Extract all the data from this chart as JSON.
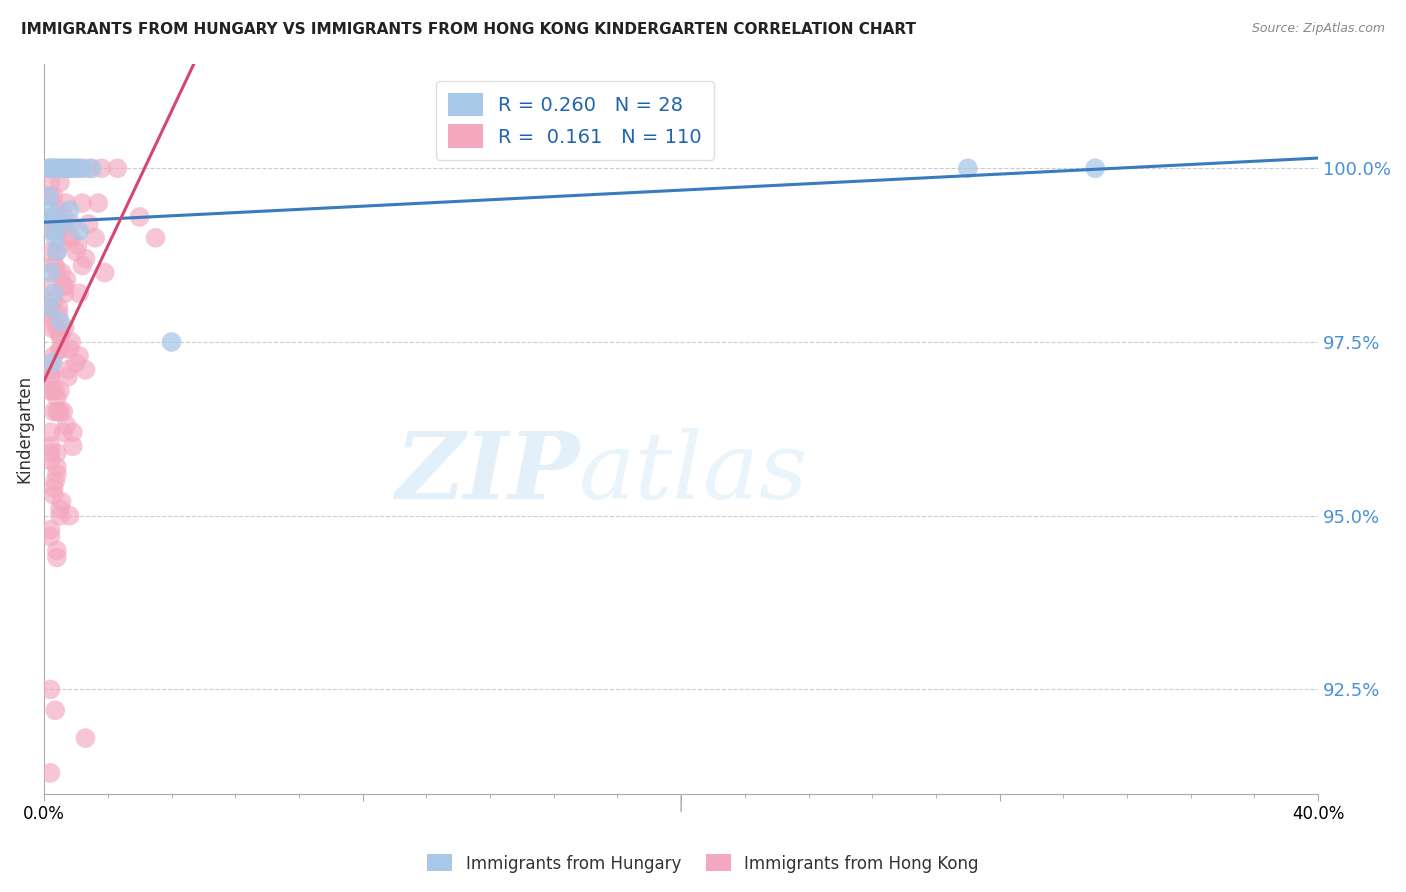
{
  "title": "IMMIGRANTS FROM HUNGARY VS IMMIGRANTS FROM HONG KONG KINDERGARTEN CORRELATION CHART",
  "source": "Source: ZipAtlas.com",
  "ylabel": "Kindergarten",
  "yticks": [
    92.5,
    95.0,
    97.5,
    100.0
  ],
  "ytick_labels": [
    "92.5%",
    "95.0%",
    "97.5%",
    "100.0%"
  ],
  "xlim": [
    0.0,
    40.0
  ],
  "ylim": [
    91.0,
    101.5
  ],
  "legend_hungary_R": "0.260",
  "legend_hungary_N": "28",
  "legend_hongkong_R": "0.161",
  "legend_hongkong_N": "110",
  "hungary_color": "#a8c8e8",
  "hongkong_color": "#f4a8c0",
  "hungary_line_color": "#3a7abf",
  "hongkong_line_color": "#d44870",
  "watermark_zip": "ZIP",
  "watermark_atlas": "atlas",
  "background_color": "#ffffff",
  "hungary_points": [
    [
      0.15,
      100.0
    ],
    [
      0.25,
      100.0
    ],
    [
      0.35,
      100.0
    ],
    [
      0.45,
      100.0
    ],
    [
      0.55,
      100.0
    ],
    [
      0.65,
      100.0
    ],
    [
      0.75,
      100.0
    ],
    [
      0.85,
      100.0
    ],
    [
      1.0,
      100.0
    ],
    [
      1.2,
      100.0
    ],
    [
      1.5,
      100.0
    ],
    [
      0.2,
      99.4
    ],
    [
      0.3,
      99.1
    ],
    [
      0.4,
      98.8
    ],
    [
      0.15,
      99.6
    ],
    [
      0.25,
      99.3
    ],
    [
      0.35,
      99.0
    ],
    [
      0.6,
      99.2
    ],
    [
      0.8,
      99.4
    ],
    [
      1.1,
      99.1
    ],
    [
      0.2,
      98.5
    ],
    [
      0.3,
      98.2
    ],
    [
      0.5,
      97.8
    ],
    [
      4.0,
      97.5
    ],
    [
      29.0,
      100.0
    ],
    [
      33.0,
      100.0
    ],
    [
      0.15,
      98.0
    ],
    [
      0.25,
      97.2
    ]
  ],
  "hongkong_points": [
    [
      0.15,
      100.0
    ],
    [
      0.25,
      100.0
    ],
    [
      0.35,
      100.0
    ],
    [
      0.5,
      100.0
    ],
    [
      0.7,
      100.0
    ],
    [
      0.9,
      100.0
    ],
    [
      1.1,
      100.0
    ],
    [
      1.4,
      100.0
    ],
    [
      1.8,
      100.0
    ],
    [
      2.3,
      100.0
    ],
    [
      0.2,
      99.8
    ],
    [
      0.3,
      99.6
    ],
    [
      0.45,
      99.4
    ],
    [
      0.6,
      99.2
    ],
    [
      0.8,
      99.0
    ],
    [
      1.0,
      98.8
    ],
    [
      1.2,
      98.6
    ],
    [
      0.25,
      99.1
    ],
    [
      0.4,
      98.8
    ],
    [
      0.55,
      98.5
    ],
    [
      0.15,
      98.3
    ],
    [
      0.3,
      98.1
    ],
    [
      0.45,
      97.9
    ],
    [
      0.65,
      97.7
    ],
    [
      0.85,
      97.5
    ],
    [
      1.1,
      97.3
    ],
    [
      1.3,
      97.1
    ],
    [
      0.2,
      97.0
    ],
    [
      0.35,
      96.8
    ],
    [
      0.5,
      96.5
    ],
    [
      0.7,
      96.3
    ],
    [
      0.9,
      96.0
    ],
    [
      0.2,
      95.8
    ],
    [
      0.35,
      95.5
    ],
    [
      0.55,
      95.2
    ],
    [
      0.8,
      95.0
    ],
    [
      1.2,
      99.5
    ],
    [
      1.4,
      99.2
    ],
    [
      1.6,
      99.0
    ],
    [
      1.9,
      98.5
    ],
    [
      0.3,
      99.3
    ],
    [
      0.5,
      99.1
    ],
    [
      0.2,
      98.8
    ],
    [
      0.7,
      98.4
    ],
    [
      1.1,
      98.2
    ],
    [
      0.2,
      98.0
    ],
    [
      0.3,
      97.8
    ],
    [
      0.5,
      97.6
    ],
    [
      0.8,
      97.4
    ],
    [
      1.0,
      97.2
    ],
    [
      0.2,
      97.0
    ],
    [
      0.4,
      96.7
    ],
    [
      0.6,
      96.5
    ],
    [
      0.9,
      96.2
    ],
    [
      0.2,
      96.0
    ],
    [
      0.4,
      95.7
    ],
    [
      0.3,
      95.4
    ],
    [
      0.5,
      95.1
    ],
    [
      0.2,
      94.8
    ],
    [
      0.4,
      94.5
    ],
    [
      0.2,
      99.6
    ],
    [
      0.6,
      99.3
    ],
    [
      0.85,
      99.0
    ],
    [
      1.3,
      98.7
    ],
    [
      0.4,
      98.5
    ],
    [
      0.65,
      98.2
    ],
    [
      0.2,
      97.9
    ],
    [
      0.5,
      97.6
    ],
    [
      0.3,
      97.3
    ],
    [
      0.75,
      97.0
    ],
    [
      0.2,
      96.8
    ],
    [
      0.4,
      96.5
    ],
    [
      0.6,
      96.2
    ],
    [
      0.2,
      95.9
    ],
    [
      0.4,
      95.6
    ],
    [
      0.3,
      95.3
    ],
    [
      0.5,
      95.0
    ],
    [
      0.2,
      94.7
    ],
    [
      0.4,
      94.4
    ],
    [
      1.7,
      99.5
    ],
    [
      0.2,
      99.2
    ],
    [
      0.5,
      98.9
    ],
    [
      0.3,
      98.6
    ],
    [
      0.65,
      98.3
    ],
    [
      0.2,
      98.0
    ],
    [
      0.4,
      97.7
    ],
    [
      0.55,
      97.4
    ],
    [
      0.2,
      97.1
    ],
    [
      0.5,
      96.8
    ],
    [
      0.3,
      96.5
    ],
    [
      0.2,
      96.2
    ],
    [
      0.4,
      95.9
    ],
    [
      0.2,
      92.5
    ],
    [
      0.35,
      92.2
    ],
    [
      1.3,
      91.8
    ],
    [
      0.2,
      91.3
    ],
    [
      0.5,
      99.8
    ],
    [
      0.7,
      99.5
    ],
    [
      0.85,
      99.2
    ],
    [
      1.05,
      98.9
    ],
    [
      0.35,
      98.6
    ],
    [
      0.6,
      98.3
    ],
    [
      0.45,
      98.0
    ],
    [
      0.25,
      97.7
    ],
    [
      0.5,
      97.4
    ],
    [
      0.75,
      97.1
    ],
    [
      0.25,
      96.8
    ],
    [
      0.45,
      96.5
    ],
    [
      3.0,
      99.3
    ],
    [
      3.5,
      99.0
    ]
  ]
}
